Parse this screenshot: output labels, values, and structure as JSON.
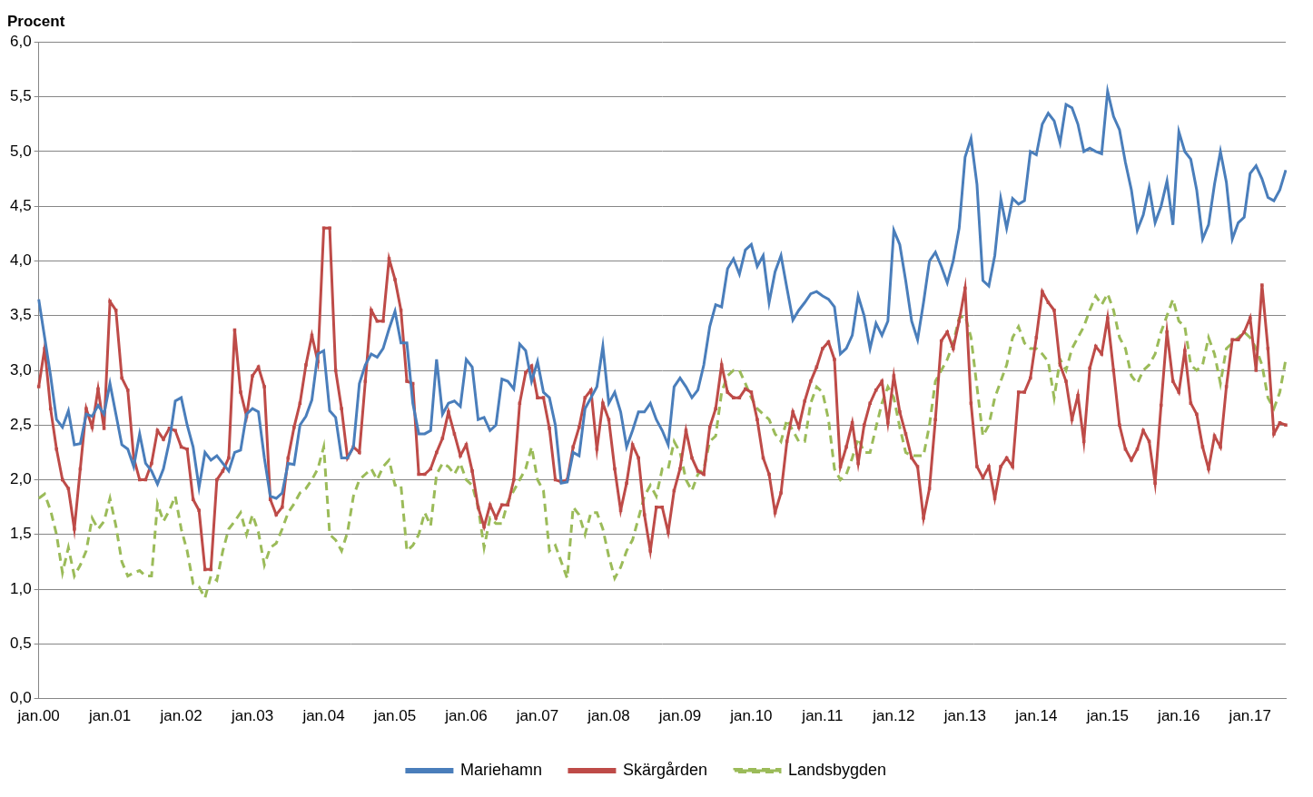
{
  "chart_data": {
    "type": "line",
    "y_label": "Procent",
    "categories": [
      "jan.00",
      null,
      null,
      null,
      null,
      null,
      null,
      null,
      null,
      null,
      null,
      null,
      "jan.01",
      null,
      null,
      null,
      null,
      null,
      null,
      null,
      null,
      null,
      null,
      null,
      "jan.02",
      null,
      null,
      null,
      null,
      null,
      null,
      null,
      null,
      null,
      null,
      null,
      "jan.03",
      null,
      null,
      null,
      null,
      null,
      null,
      null,
      null,
      null,
      null,
      null,
      "jan.04",
      null,
      null,
      null,
      null,
      null,
      null,
      null,
      null,
      null,
      null,
      null,
      "jan.05",
      null,
      null,
      null,
      null,
      null,
      null,
      null,
      null,
      null,
      null,
      null,
      "jan.06",
      null,
      null,
      null,
      null,
      null,
      null,
      null,
      null,
      null,
      null,
      null,
      "jan.07",
      null,
      null,
      null,
      null,
      null,
      null,
      null,
      null,
      null,
      null,
      null,
      "jan.08",
      null,
      null,
      null,
      null,
      null,
      null,
      null,
      null,
      null,
      null,
      null,
      "jan.09",
      null,
      null,
      null,
      null,
      null,
      null,
      null,
      null,
      null,
      null,
      null,
      "jan.10",
      null,
      null,
      null,
      null,
      null,
      null,
      null,
      null,
      null,
      null,
      null,
      "jan.11",
      null,
      null,
      null,
      null,
      null,
      null,
      null,
      null,
      null,
      null,
      null,
      "jan.12",
      null,
      null,
      null,
      null,
      null,
      null,
      null,
      null,
      null,
      null,
      null,
      "jan.13",
      null,
      null,
      null,
      null,
      null,
      null,
      null,
      null,
      null,
      null,
      null,
      "jan.14",
      null,
      null,
      null,
      null,
      null,
      null,
      null,
      null,
      null,
      null,
      null,
      "jan.15",
      null,
      null,
      null,
      null,
      null,
      null,
      null,
      null,
      null,
      null,
      null,
      "jan.16",
      null,
      null,
      null,
      null,
      null,
      null,
      null,
      null,
      null,
      null,
      null,
      "jan.17",
      null,
      null,
      null,
      null,
      null,
      null
    ],
    "series": [
      {
        "name": "Mariehamn",
        "color": "#4a7ebb",
        "line_style": "solid",
        "values": [
          3.65,
          3.3,
          2.95,
          2.55,
          2.48,
          2.63,
          2.32,
          2.33,
          2.6,
          2.58,
          2.68,
          2.6,
          2.88,
          2.6,
          2.32,
          2.28,
          2.12,
          2.42,
          2.15,
          2.08,
          1.96,
          2.1,
          2.35,
          2.72,
          2.75,
          2.5,
          2.3,
          1.93,
          2.25,
          2.18,
          2.22,
          2.15,
          2.08,
          2.25,
          2.27,
          2.6,
          2.65,
          2.62,
          2.2,
          1.85,
          1.83,
          1.88,
          2.15,
          2.14,
          2.5,
          2.58,
          2.73,
          3.15,
          3.18,
          2.63,
          2.57,
          2.2,
          2.2,
          2.3,
          2.88,
          3.05,
          3.15,
          3.12,
          3.2,
          3.38,
          3.54,
          3.25,
          3.25,
          2.7,
          2.42,
          2.42,
          2.45,
          3.1,
          2.6,
          2.7,
          2.72,
          2.67,
          3.1,
          3.03,
          2.55,
          2.57,
          2.45,
          2.5,
          2.92,
          2.9,
          2.83,
          3.24,
          3.18,
          2.9,
          3.08,
          2.8,
          2.75,
          2.5,
          1.97,
          1.98,
          2.25,
          2.22,
          2.65,
          2.75,
          2.85,
          3.22,
          2.7,
          2.8,
          2.62,
          2.3,
          2.45,
          2.62,
          2.62,
          2.7,
          2.55,
          2.45,
          2.32,
          2.85,
          2.93,
          2.85,
          2.75,
          2.82,
          3.05,
          3.4,
          3.6,
          3.58,
          3.93,
          4.02,
          3.88,
          4.1,
          4.15,
          3.95,
          4.05,
          3.62,
          3.9,
          4.05,
          3.75,
          3.46,
          3.55,
          3.62,
          3.7,
          3.72,
          3.68,
          3.65,
          3.58,
          3.15,
          3.2,
          3.32,
          3.68,
          3.5,
          3.2,
          3.43,
          3.32,
          3.45,
          4.28,
          4.15,
          3.82,
          3.45,
          3.28,
          3.62,
          4.0,
          4.08,
          3.95,
          3.8,
          4.0,
          4.3,
          4.95,
          5.12,
          4.7,
          3.82,
          3.77,
          4.05,
          4.57,
          4.3,
          4.57,
          4.52,
          4.55,
          5.0,
          4.97,
          5.25,
          5.35,
          5.28,
          5.08,
          5.43,
          5.4,
          5.25,
          5.0,
          5.03,
          5.0,
          4.98,
          5.55,
          5.32,
          5.2,
          4.9,
          4.65,
          4.28,
          4.42,
          4.67,
          4.35,
          4.5,
          4.73,
          4.33,
          5.18,
          5.0,
          4.93,
          4.65,
          4.2,
          4.33,
          4.7,
          5.0,
          4.72,
          4.2,
          4.35,
          4.4,
          4.8,
          4.87,
          4.75,
          4.58,
          4.55,
          4.65,
          4.83
        ]
      },
      {
        "name": "Skärgården",
        "color": "#be4b48",
        "line_style": "solid",
        "marker": "square",
        "values": [
          2.85,
          3.2,
          2.65,
          2.28,
          2.0,
          1.92,
          1.55,
          2.1,
          2.65,
          2.48,
          2.83,
          2.47,
          3.63,
          3.55,
          2.93,
          2.82,
          2.2,
          2.0,
          2.0,
          2.15,
          2.45,
          2.37,
          2.47,
          2.45,
          2.3,
          2.28,
          1.82,
          1.72,
          1.18,
          1.18,
          2.0,
          2.08,
          2.2,
          3.37,
          2.8,
          2.58,
          2.95,
          3.03,
          2.85,
          1.82,
          1.68,
          1.75,
          2.2,
          2.48,
          2.7,
          3.05,
          3.32,
          3.08,
          4.3,
          4.3,
          3.0,
          2.65,
          2.2,
          2.3,
          2.25,
          2.9,
          3.55,
          3.45,
          3.45,
          4.02,
          3.83,
          3.55,
          2.9,
          2.88,
          2.05,
          2.05,
          2.1,
          2.25,
          2.38,
          2.62,
          2.42,
          2.22,
          2.32,
          2.08,
          1.75,
          1.57,
          1.77,
          1.65,
          1.77,
          1.77,
          2.0,
          2.7,
          2.98,
          3.04,
          2.75,
          2.75,
          2.47,
          2.0,
          1.98,
          2.0,
          2.3,
          2.48,
          2.75,
          2.82,
          2.28,
          2.7,
          2.55,
          2.1,
          1.72,
          1.97,
          2.32,
          2.2,
          1.68,
          1.35,
          1.75,
          1.75,
          1.52,
          1.9,
          2.1,
          2.45,
          2.2,
          2.08,
          2.05,
          2.48,
          2.65,
          3.05,
          2.8,
          2.75,
          2.75,
          2.83,
          2.8,
          2.55,
          2.2,
          2.05,
          1.7,
          1.88,
          2.35,
          2.62,
          2.48,
          2.72,
          2.9,
          3.03,
          3.2,
          3.26,
          3.1,
          2.12,
          2.3,
          2.52,
          2.15,
          2.5,
          2.7,
          2.82,
          2.9,
          2.52,
          2.95,
          2.62,
          2.42,
          2.2,
          2.12,
          1.65,
          1.92,
          2.55,
          3.27,
          3.35,
          3.2,
          3.45,
          3.75,
          2.7,
          2.12,
          2.02,
          2.12,
          1.83,
          2.12,
          2.2,
          2.12,
          2.8,
          2.8,
          2.93,
          3.3,
          3.72,
          3.62,
          3.55,
          3.05,
          2.9,
          2.55,
          2.77,
          2.35,
          3.02,
          3.22,
          3.15,
          3.48,
          3.0,
          2.5,
          2.28,
          2.18,
          2.28,
          2.45,
          2.35,
          1.97,
          2.68,
          3.35,
          2.9,
          2.8,
          3.18,
          2.7,
          2.6,
          2.3,
          2.1,
          2.4,
          2.3,
          2.85,
          3.28,
          3.28,
          3.35,
          3.48,
          3.0,
          3.78,
          3.2,
          2.42,
          2.52,
          2.5
        ]
      },
      {
        "name": "Landsbygden",
        "color": "#9bbb59",
        "line_style": "dashed",
        "values": [
          1.83,
          1.87,
          1.72,
          1.5,
          1.15,
          1.38,
          1.12,
          1.22,
          1.35,
          1.65,
          1.55,
          1.62,
          1.83,
          1.58,
          1.25,
          1.12,
          1.15,
          1.17,
          1.12,
          1.12,
          1.78,
          1.62,
          1.72,
          1.85,
          1.55,
          1.35,
          1.05,
          1.02,
          0.92,
          1.12,
          1.08,
          1.35,
          1.55,
          1.62,
          1.7,
          1.5,
          1.68,
          1.52,
          1.22,
          1.38,
          1.42,
          1.55,
          1.7,
          1.78,
          1.88,
          1.92,
          2.0,
          2.1,
          2.3,
          1.5,
          1.45,
          1.35,
          1.52,
          1.85,
          2.0,
          2.05,
          2.1,
          2.0,
          2.12,
          2.18,
          1.95,
          1.95,
          1.35,
          1.4,
          1.5,
          1.7,
          1.58,
          2.05,
          2.15,
          2.12,
          2.05,
          2.15,
          2.0,
          1.95,
          1.75,
          1.38,
          1.65,
          1.6,
          1.6,
          1.8,
          1.9,
          2.0,
          2.1,
          2.3,
          2.0,
          1.9,
          1.35,
          1.4,
          1.25,
          1.1,
          1.75,
          1.68,
          1.5,
          1.7,
          1.7,
          1.55,
          1.3,
          1.1,
          1.2,
          1.35,
          1.45,
          1.65,
          1.85,
          1.95,
          1.85,
          2.1,
          2.1,
          2.35,
          2.25,
          2.0,
          1.9,
          2.05,
          2.1,
          2.35,
          2.4,
          2.8,
          2.95,
          3.0,
          3.0,
          2.88,
          2.75,
          2.65,
          2.6,
          2.55,
          2.42,
          2.35,
          2.55,
          2.45,
          2.35,
          2.35,
          2.7,
          2.85,
          2.8,
          2.55,
          2.1,
          2.0,
          2.05,
          2.2,
          2.38,
          2.25,
          2.25,
          2.48,
          2.7,
          2.85,
          2.75,
          2.48,
          2.25,
          2.22,
          2.22,
          2.22,
          2.5,
          2.9,
          3.0,
          3.1,
          3.25,
          3.48,
          3.5,
          3.3,
          2.85,
          2.4,
          2.5,
          2.75,
          2.9,
          3.05,
          3.3,
          3.4,
          3.25,
          3.2,
          3.2,
          3.15,
          3.08,
          2.75,
          3.1,
          3.0,
          3.2,
          3.3,
          3.4,
          3.55,
          3.68,
          3.6,
          3.7,
          3.55,
          3.3,
          3.2,
          2.95,
          2.88,
          3.0,
          3.05,
          3.15,
          3.35,
          3.5,
          3.65,
          3.45,
          3.4,
          3.05,
          3.0,
          3.05,
          3.3,
          3.15,
          2.88,
          3.2,
          3.25,
          3.3,
          3.35,
          3.3,
          3.2,
          3.05,
          2.75,
          2.65,
          2.8,
          3.1
        ]
      }
    ],
    "ylim": [
      0,
      6
    ],
    "yticks": [
      {
        "value": 0,
        "label": "0,0"
      },
      {
        "value": 0.5,
        "label": "0,5"
      },
      {
        "value": 1,
        "label": "1,0"
      },
      {
        "value": 1.5,
        "label": "1,5"
      },
      {
        "value": 2,
        "label": "2,0"
      },
      {
        "value": 2.5,
        "label": "2,5"
      },
      {
        "value": 3,
        "label": "3,0"
      },
      {
        "value": 3.5,
        "label": "3,5"
      },
      {
        "value": 4,
        "label": "4,0"
      },
      {
        "value": 4.5,
        "label": "4,5"
      },
      {
        "value": 5,
        "label": "5,0"
      },
      {
        "value": 5.5,
        "label": "5,5"
      },
      {
        "value": 6,
        "label": "6,0"
      }
    ],
    "grid": true,
    "legend": "bottom"
  }
}
